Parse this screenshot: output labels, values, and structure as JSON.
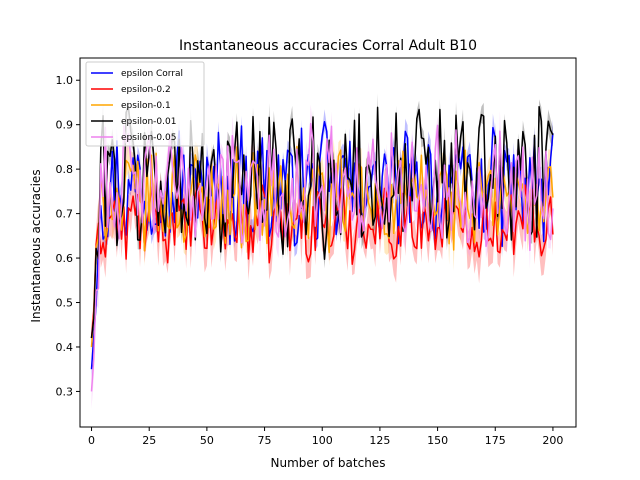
{
  "chart_data": {
    "type": "line",
    "title": "Instantaneous accuracies Corral Adult B10",
    "xlabel": "Number of batches",
    "ylabel": "Instantaneous accuracies",
    "xlim": [
      -5,
      210
    ],
    "ylim": [
      0.22,
      1.05
    ],
    "xticks": [
      0,
      25,
      50,
      75,
      100,
      125,
      150,
      175,
      200
    ],
    "yticks": [
      0.3,
      0.4,
      0.5,
      0.6,
      0.7,
      0.8,
      0.9,
      1.0
    ],
    "ytick_labels": [
      "0.3",
      "0.4",
      "0.5",
      "0.6",
      "0.7",
      "0.8",
      "0.9",
      "1.0"
    ],
    "legend_position": "top-left",
    "num_points": 201,
    "series": [
      {
        "name": "epsilon Corral",
        "color": "#0000ff",
        "start": 0.35,
        "mean": 0.76,
        "amp": 0.07,
        "band": 0.02
      },
      {
        "name": "epsilon-0.2",
        "color": "#ff0000",
        "start": 0.42,
        "mean": 0.68,
        "amp": 0.045,
        "band": 0.04
      },
      {
        "name": "epsilon-0.1",
        "color": "#ffa500",
        "start": 0.4,
        "mean": 0.73,
        "amp": 0.06,
        "band": 0.03
      },
      {
        "name": "epsilon-0.01",
        "color": "#000000",
        "start": 0.42,
        "mean": 0.78,
        "amp": 0.09,
        "band": 0.02
      },
      {
        "name": "epsilon-0.05",
        "color": "#ee82ee",
        "start": 0.3,
        "mean": 0.76,
        "amp": 0.07,
        "band": 0.03
      }
    ]
  }
}
